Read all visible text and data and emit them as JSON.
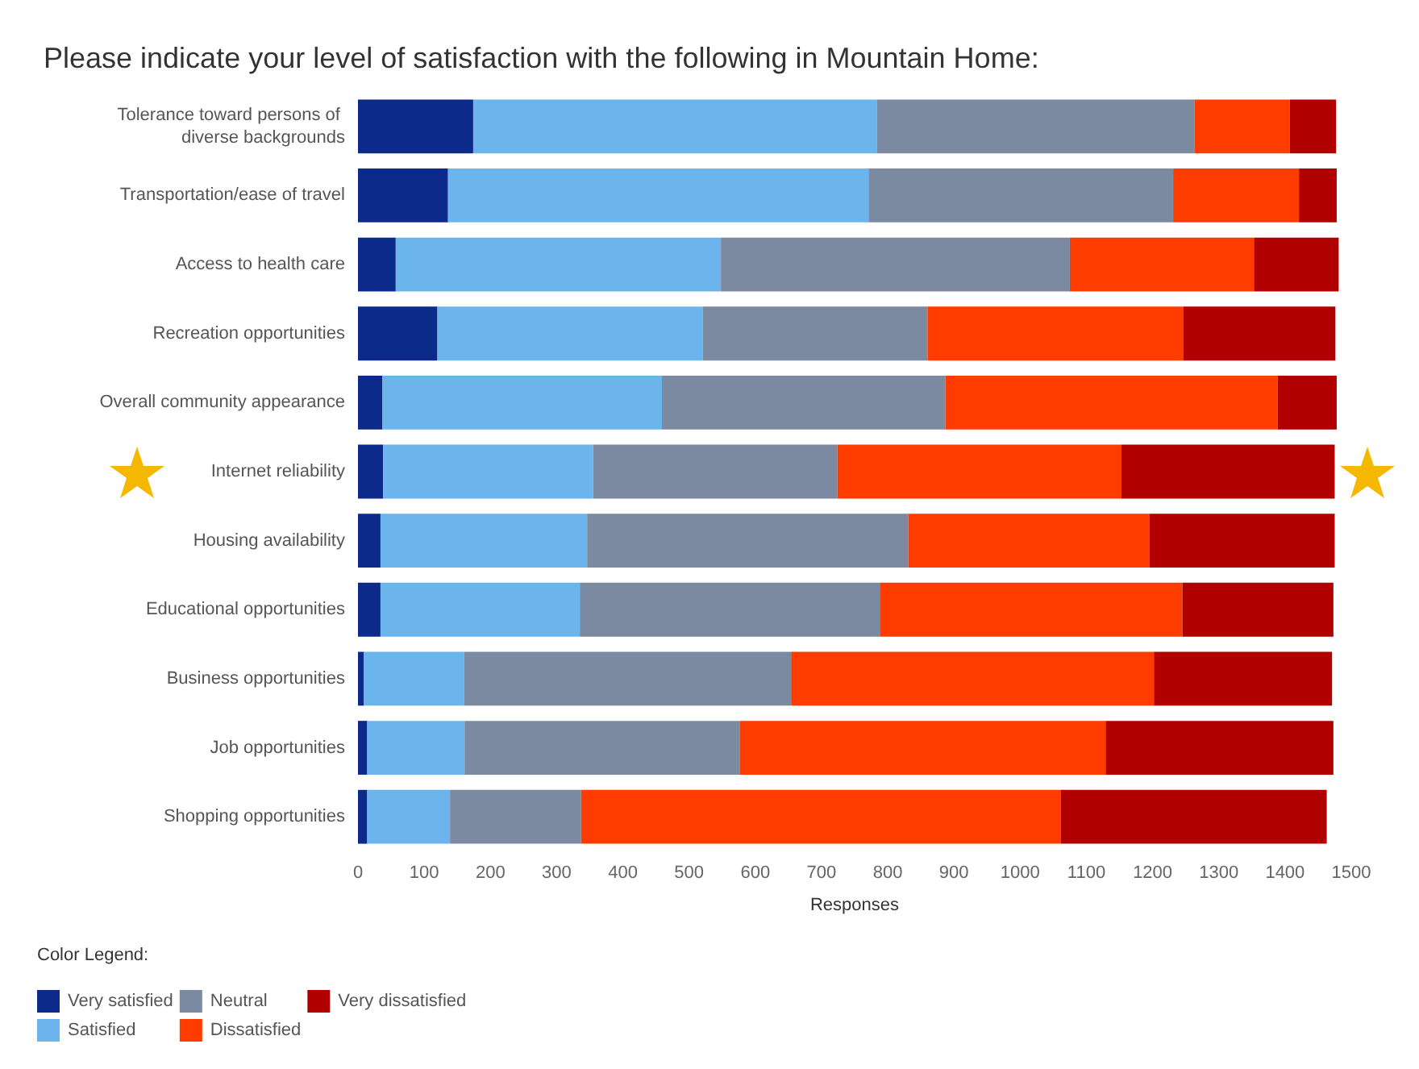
{
  "chart_data": {
    "type": "bar",
    "orientation": "horizontal",
    "stacked": true,
    "title": "Please indicate your level of satisfaction with the following in Mountain Home:",
    "xlabel": "Responses",
    "legend_title": "Color Legend:",
    "legend": "bottom left",
    "grid": false,
    "categories": [
      "Tolerance toward persons of diverse backgrounds",
      "Transportation/ease of travel",
      "Access to health care",
      "Recreation opportunities",
      "Overall community appearance",
      "Internet reliability",
      "Housing availability",
      "Educational opportunities",
      "Business opportunities",
      "Job opportunities",
      "Shopping opportunities"
    ],
    "xlim": [
      0,
      1500
    ],
    "xticks": [
      0,
      100,
      200,
      300,
      400,
      500,
      600,
      700,
      800,
      900,
      1000,
      1100,
      1200,
      1300,
      1400,
      1500
    ],
    "series": [
      {
        "name": "Very satisfied",
        "color": "#0b2a8a",
        "values": [
          174,
          136,
          57,
          120,
          37,
          38,
          34,
          34,
          9,
          14,
          14
        ]
      },
      {
        "name": "Satisfied",
        "color": "#6cb4ec",
        "values": [
          610,
          635,
          491,
          401,
          422,
          317,
          312,
          301,
          151,
          147,
          125
        ]
      },
      {
        "name": "Neutral",
        "color": "#7b8aa0",
        "values": [
          479,
          460,
          527,
          339,
          428,
          369,
          485,
          453,
          494,
          416,
          198
        ]
      },
      {
        "name": "Dissatisfied",
        "color": "#ff3c00",
        "values": [
          144,
          190,
          278,
          386,
          502,
          429,
          364,
          457,
          548,
          552,
          724
        ]
      },
      {
        "name": "Very dissatisfied",
        "color": "#b00000",
        "values": [
          70,
          57,
          128,
          230,
          89,
          322,
          280,
          228,
          269,
          344,
          402
        ]
      }
    ]
  }
}
